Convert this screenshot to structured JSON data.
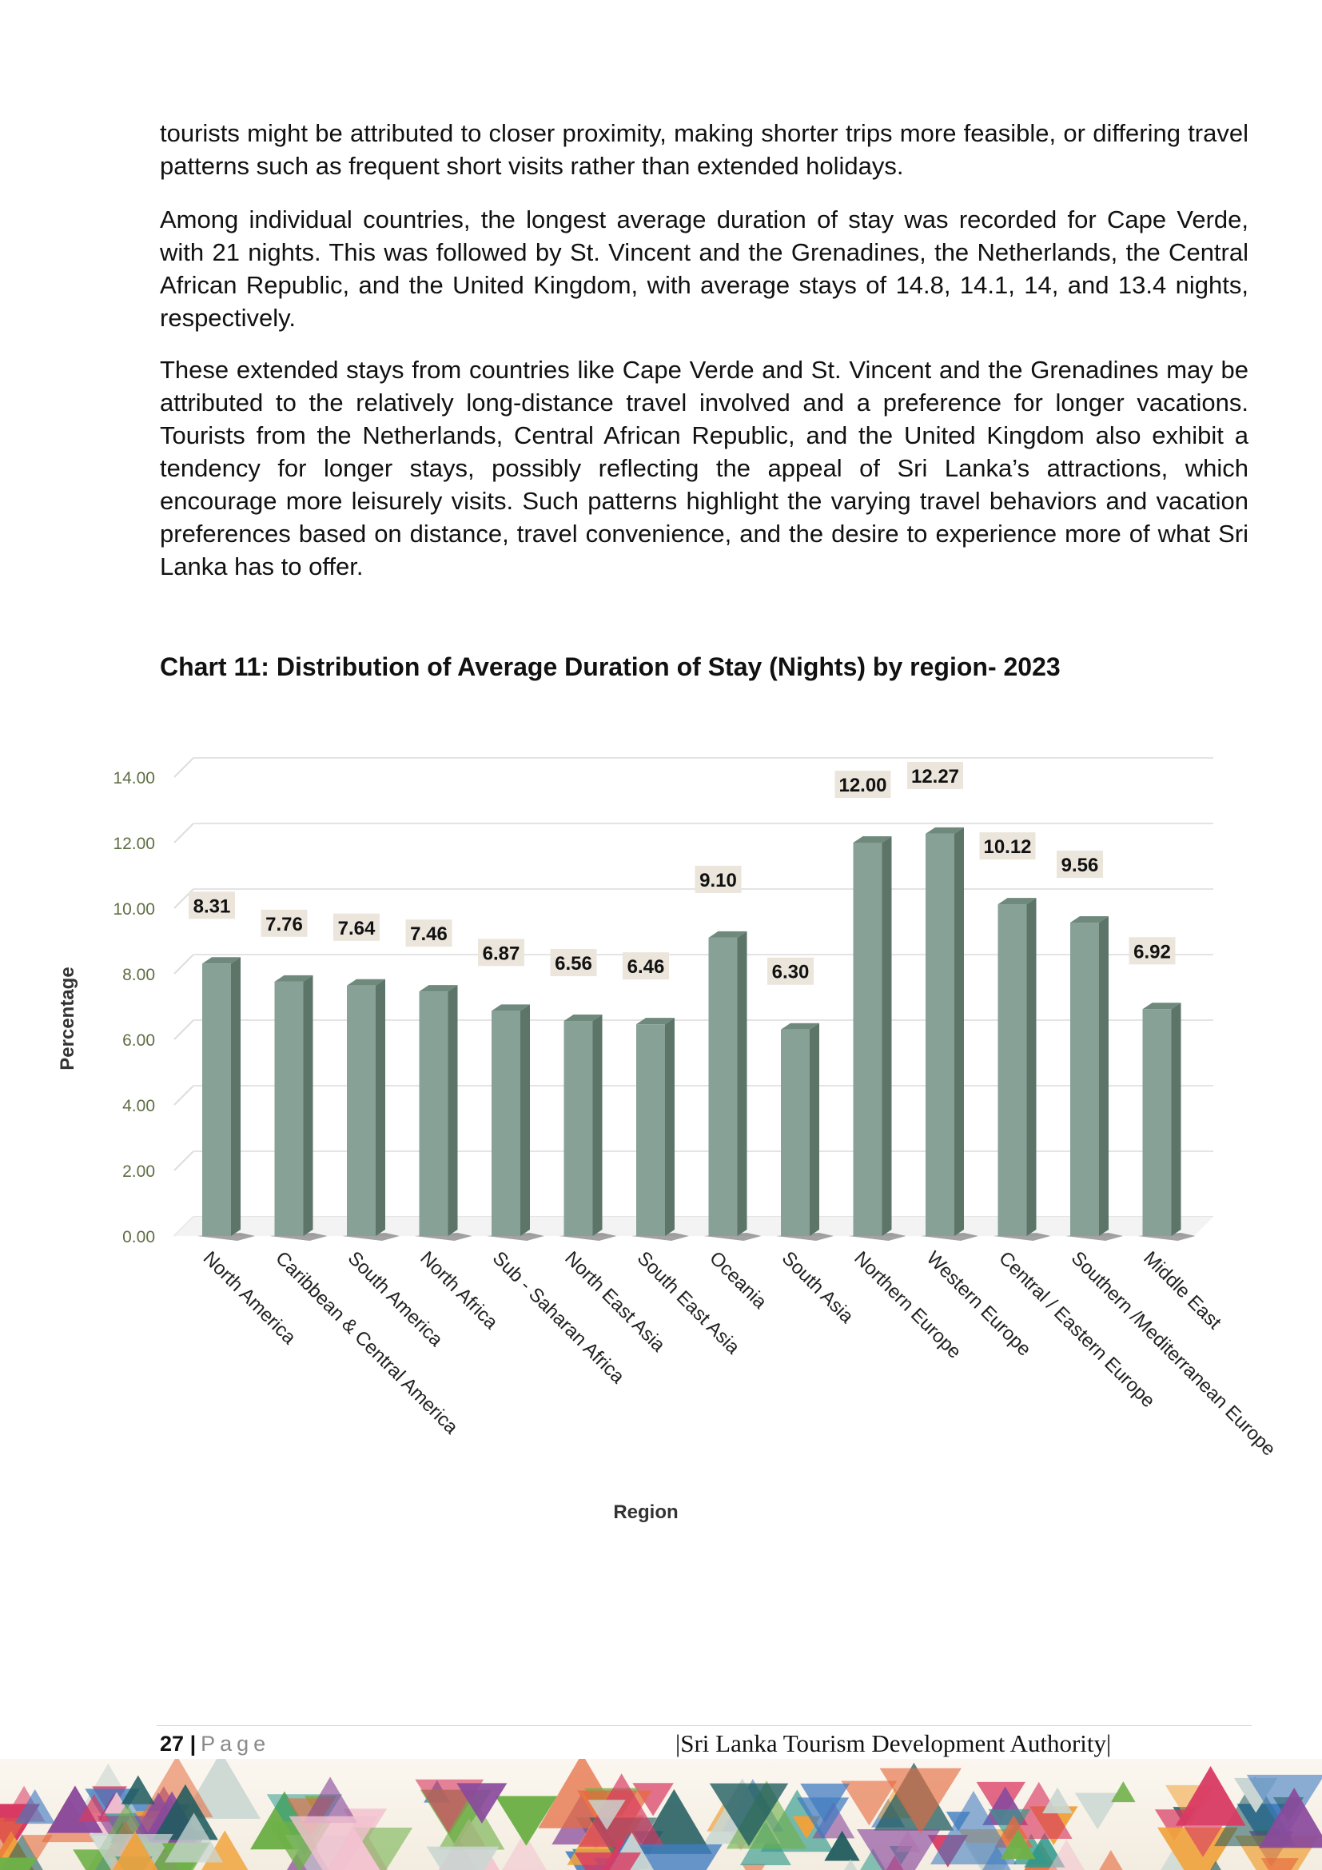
{
  "body_text": {
    "para1": "tourists might be attributed to closer proximity, making shorter trips more feasible, or differing travel patterns such as frequent short visits rather than extended holidays.",
    "para2": "Among individual countries, the longest average duration of stay was recorded for Cape Verde, with 21 nights. This was followed by St. Vincent and the Grenadines, the Netherlands, the Central African Republic, and the United Kingdom, with average stays of 14.8, 14.1, 14, and 13.4 nights, respectively.",
    "para3": "These extended stays from countries like Cape Verde and St. Vincent and the Grenadines may be attributed to the relatively long-distance travel involved and a preference for longer vacations. Tourists from the Netherlands, Central African Republic, and the United Kingdom also exhibit a tendency for longer stays, possibly reflecting the appeal of Sri Lanka’s attractions, which encourage more leisurely visits. Such patterns highlight the varying travel behaviors and vacation preferences based on distance, travel convenience, and the desire to experience more of what Sri Lanka has to offer."
  },
  "chart_data": {
    "type": "bar",
    "title": "Chart 11: Distribution of Average Duration of Stay (Nights) by region- 2023",
    "xlabel": "Region",
    "ylabel": "Percentage",
    "categories": [
      "North America",
      "Caribbean & Central America",
      "South America",
      "North Africa",
      "Sub  - Saharan Africa",
      "North East  Asia",
      "South East Asia",
      "Oceania",
      "South Asia",
      "Northern Europe",
      "Western Europe",
      "Central / Eastern Europe",
      "Southern /Mediterranean Europe",
      "Middle East"
    ],
    "values": [
      8.31,
      7.76,
      7.64,
      7.46,
      6.87,
      6.56,
      6.46,
      9.1,
      6.3,
      12.0,
      12.27,
      10.12,
      9.56,
      6.92
    ],
    "data_labels": [
      "8.31",
      "7.76",
      "7.64",
      "7.46",
      "6.87",
      "6.56",
      "6.46",
      "9.10",
      "6.30",
      "12.00",
      "12.27",
      "10.12",
      "9.56",
      "6.92"
    ],
    "yticks": [
      "0.00",
      "2.00",
      "4.00",
      "6.00",
      "8.00",
      "10.00",
      "12.00",
      "14.00"
    ],
    "ylim": [
      0,
      14
    ],
    "grid": true,
    "bar_color": "#87a196",
    "bar_side_color": "#5d7569",
    "label_box_color": "#ebe5dc"
  },
  "footer": {
    "page_number": "27",
    "separator": "|",
    "page_word": "Page",
    "authority": "|Sri Lanka Tourism Development Authority|"
  }
}
